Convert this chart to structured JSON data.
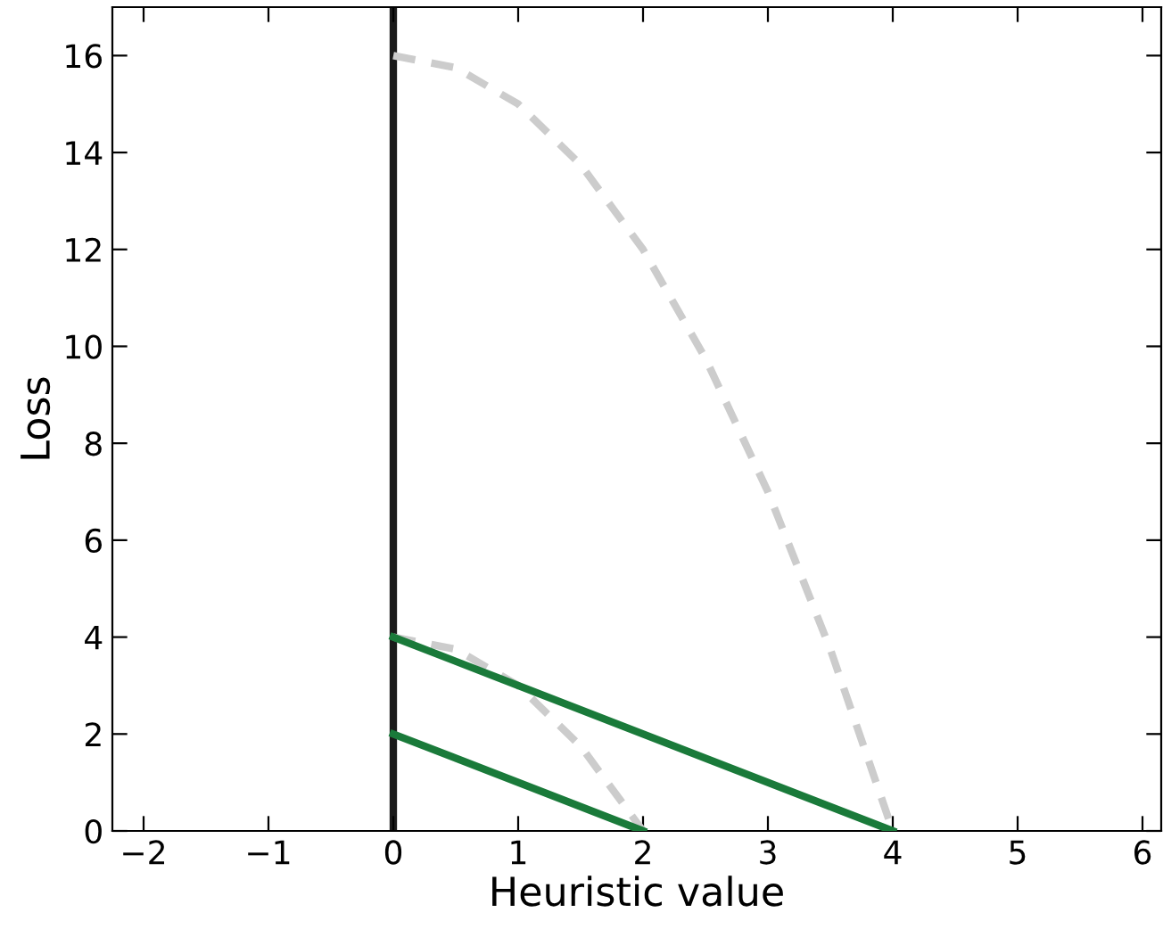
{
  "chart_data": {
    "type": "line",
    "xlabel": "Heuristic value",
    "ylabel": "Loss",
    "xlim": [
      -2.25,
      6.15
    ],
    "ylim": [
      0,
      17
    ],
    "xticks": [
      {
        "value": -2,
        "label": "−2"
      },
      {
        "value": -1,
        "label": "−1"
      },
      0,
      1,
      2,
      3,
      4,
      5,
      6
    ],
    "yticks": [
      0,
      2,
      4,
      6,
      8,
      10,
      12,
      14,
      16
    ],
    "grid": false,
    "legend": false,
    "marker": "none",
    "series": [
      {
        "color": "#cccccc",
        "line_style": "dashed",
        "x": [
          0,
          0.5,
          1,
          1.5,
          2,
          2.5,
          3,
          3.5,
          4
        ],
        "values": [
          16,
          15.75,
          15,
          13.75,
          12,
          9.75,
          7,
          3.75,
          0
        ]
      },
      {
        "color": "#cccccc",
        "line_style": "dashed",
        "x": [
          0,
          0.5,
          1,
          1.5,
          2
        ],
        "values": [
          4,
          3.75,
          3,
          1.75,
          0
        ]
      },
      {
        "color": "#1a7a3a",
        "line_style": "solid",
        "x": [
          0,
          2
        ],
        "values": [
          2,
          0
        ]
      },
      {
        "color": "#1a7a3a",
        "line_style": "solid",
        "x": [
          0,
          4
        ],
        "values": [
          4,
          0
        ]
      }
    ],
    "ref_lines": [
      {
        "axis": "x",
        "value": 0,
        "color": "#1a1a1a",
        "line_style": "solid"
      }
    ]
  }
}
